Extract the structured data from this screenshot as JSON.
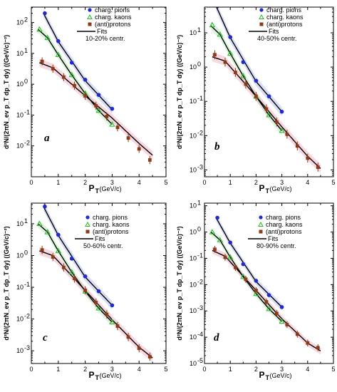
{
  "figure": {
    "colors": {
      "pions": "#1f2bcc",
      "pions_band": "#b9c2ee",
      "kaons": "#22bb22",
      "kaons_band": "#bde9bd",
      "protons": "#8b3a1a",
      "protons_band": "#f2b7c6",
      "fit": "#000000",
      "frame": "#000000"
    }
  },
  "chart_data": [
    {
      "type": "scatter",
      "panel": "a",
      "centrality": "10-20% centr.",
      "xlabel_main": "P",
      "xlabel_sub": "T",
      "xlabel_unit": " (GeV/c)",
      "ylabel": "d²N/(2πN_ev p_T dp_T dy) ((GeV/c)⁻²)",
      "xlim": [
        0,
        5
      ],
      "ylim_log10": [
        -3,
        2.5
      ],
      "yscale": "log",
      "xticks": [
        "0",
        "0.5",
        "1",
        "1.5",
        "2",
        "2.5",
        "3",
        "3.5",
        "4",
        "4.5",
        "5"
      ],
      "ytick_exponents": [
        -2,
        -1,
        0,
        1,
        2
      ],
      "legend": [
        "charg. pions",
        "charg. kaons",
        "(anti)protons",
        "Fits",
        "10-20% centr."
      ],
      "series": [
        {
          "name": "charg. pions",
          "marker": "circle",
          "x": [
            0.5,
            1.0,
            1.5,
            2.0,
            2.5,
            3.0
          ],
          "y": [
            200,
            25,
            5,
            1.4,
            0.45,
            0.16
          ]
        },
        {
          "name": "charg. kaons",
          "marker": "triangle",
          "x": [
            0.3,
            0.6,
            1.0,
            1.5,
            2.0,
            2.5,
            3.0
          ],
          "y": [
            60,
            32,
            9,
            2.0,
            0.5,
            0.14,
            0.05
          ]
        },
        {
          "name": "(anti)protons",
          "marker": "square",
          "x": [
            0.4,
            0.8,
            1.2,
            1.6,
            2.0,
            2.4,
            2.8,
            3.2,
            3.6,
            4.0,
            4.4
          ],
          "y": [
            5.5,
            3.2,
            1.7,
            0.9,
            0.42,
            0.2,
            0.09,
            0.04,
            0.018,
            0.008,
            0.0035
          ]
        }
      ],
      "fits": [
        {
          "x": [
            0.45,
            1.0,
            2.0,
            3.0
          ],
          "y": [
            200,
            24,
            1.3,
            0.15
          ]
        },
        {
          "x": [
            0.25,
            0.6,
            1.0,
            1.5,
            2.0,
            2.5,
            3.0
          ],
          "y": [
            60,
            32,
            9,
            2,
            0.5,
            0.14,
            0.05
          ]
        },
        {
          "x": [
            0.3,
            0.8,
            1.5,
            2.0,
            3.0,
            4.0,
            4.5
          ],
          "y": [
            5.0,
            3.4,
            1.0,
            0.42,
            0.08,
            0.012,
            0.005
          ]
        }
      ]
    },
    {
      "type": "scatter",
      "panel": "b",
      "centrality": "40-50% centr.",
      "xlabel_main": "P",
      "xlabel_sub": "T",
      "xlabel_unit": " (GeV/c)",
      "ylabel": "d²N/(2πN_ev p_T dp_T dy) ((GeV/c)⁻²)",
      "xlim": [
        0,
        5
      ],
      "ylim_log10": [
        -3.2,
        1.75
      ],
      "yscale": "log",
      "xticks": [
        "0",
        "0.5",
        "1",
        "1.5",
        "2",
        "2.5",
        "3",
        "3.5",
        "4",
        "4.5",
        "5"
      ],
      "ytick_exponents": [
        -3,
        -2,
        -1,
        0,
        1
      ],
      "legend": [
        "charg. pions",
        "charg. kaons",
        "(anti)protons",
        "Fits",
        "40-50% centr."
      ],
      "series": [
        {
          "name": "charg. pions",
          "marker": "circle",
          "x": [
            0.5,
            1.0,
            1.5,
            2.0,
            2.5,
            3.0
          ],
          "y": [
            60,
            7.5,
            1.4,
            0.4,
            0.14,
            0.05
          ]
        },
        {
          "name": "charg. kaons",
          "marker": "triangle",
          "x": [
            0.3,
            0.6,
            1.0,
            1.5,
            2.0,
            2.5,
            3.0
          ],
          "y": [
            17,
            9,
            2.5,
            0.55,
            0.14,
            0.04,
            0.014
          ]
        },
        {
          "name": "(anti)protons",
          "marker": "square",
          "x": [
            0.4,
            0.8,
            1.2,
            1.6,
            2.0,
            2.4,
            2.8,
            3.2,
            3.6,
            4.0,
            4.4
          ],
          "y": [
            2.3,
            1.4,
            0.7,
            0.32,
            0.14,
            0.06,
            0.025,
            0.011,
            0.005,
            0.0022,
            0.0012
          ]
        }
      ],
      "fits": [
        {
          "x": [
            0.45,
            1.0,
            2.0,
            3.0
          ],
          "y": [
            60,
            7.2,
            0.38,
            0.05
          ]
        },
        {
          "x": [
            0.25,
            0.6,
            1.0,
            1.5,
            2.0,
            2.5,
            3.0
          ],
          "y": [
            16,
            9,
            2.5,
            0.55,
            0.14,
            0.04,
            0.014
          ]
        },
        {
          "x": [
            0.3,
            0.8,
            1.5,
            2.0,
            3.0,
            4.0,
            4.5
          ],
          "y": [
            2.0,
            1.5,
            0.38,
            0.14,
            0.018,
            0.0025,
            0.0011
          ]
        }
      ]
    },
    {
      "type": "scatter",
      "panel": "c",
      "centrality": "50-60% centr.",
      "xlabel_main": "P",
      "xlabel_sub": "T",
      "xlabel_unit": " (GeV/c)",
      "ylabel": "d²N/(2πN_ev p_T dp_T dy) ((GeV/c)⁻²)",
      "xlim": [
        0,
        5
      ],
      "ylim_log10": [
        -3.4,
        1.65
      ],
      "yscale": "log",
      "xticks": [
        "0",
        "0.5",
        "1",
        "1.5",
        "2",
        "2.5",
        "3",
        "3.5",
        "4",
        "4.5",
        "5"
      ],
      "ytick_exponents": [
        -3,
        -2,
        -1,
        0,
        1
      ],
      "legend": [
        "charg. pions",
        "charg. kaons",
        "(anti)protons",
        "Fits",
        "50-60% centr."
      ],
      "series": [
        {
          "name": "charg. pions",
          "marker": "circle",
          "x": [
            0.5,
            1.0,
            1.5,
            2.0,
            2.5,
            3.0
          ],
          "y": [
            35,
            4.5,
            0.8,
            0.22,
            0.075,
            0.027
          ]
        },
        {
          "name": "charg. kaons",
          "marker": "triangle",
          "x": [
            0.3,
            0.6,
            1.0,
            1.5,
            2.0,
            2.5,
            3.0
          ],
          "y": [
            10,
            5.5,
            1.4,
            0.3,
            0.075,
            0.022,
            0.008
          ]
        },
        {
          "name": "(anti)protons",
          "marker": "square",
          "x": [
            0.4,
            0.8,
            1.2,
            1.6,
            2.0,
            2.4,
            2.8,
            3.2,
            3.6,
            4.0,
            4.4
          ],
          "y": [
            1.5,
            0.9,
            0.42,
            0.19,
            0.08,
            0.033,
            0.014,
            0.006,
            0.0027,
            0.0012,
            0.00065
          ]
        }
      ],
      "fits": [
        {
          "x": [
            0.45,
            1.0,
            2.0,
            3.0
          ],
          "y": [
            35,
            4.3,
            0.21,
            0.027
          ]
        },
        {
          "x": [
            0.25,
            0.6,
            1.0,
            1.5,
            2.0,
            2.5,
            3.0
          ],
          "y": [
            10,
            5.5,
            1.4,
            0.3,
            0.075,
            0.022,
            0.008
          ]
        },
        {
          "x": [
            0.3,
            0.8,
            1.5,
            2.0,
            3.0,
            4.0,
            4.5
          ],
          "y": [
            1.4,
            1.0,
            0.23,
            0.08,
            0.0095,
            0.0013,
            0.0006
          ]
        }
      ]
    },
    {
      "type": "scatter",
      "panel": "d",
      "centrality": "80-90% centr.",
      "xlabel_main": "P",
      "xlabel_sub": "T",
      "xlabel_unit": " (GeV/c)",
      "ylabel": "d²N/(2πN_ev p_T dp_T dy) ((GeV/c)⁻²)",
      "xlim": [
        0,
        5
      ],
      "ylim_log10": [
        -5,
        1.1
      ],
      "yscale": "log",
      "xticks": [
        "0",
        "0.5",
        "1",
        "1.5",
        "2",
        "2.5",
        "3",
        "3.5",
        "4",
        "4.5",
        "5"
      ],
      "ytick_exponents": [
        -5,
        -4,
        -3,
        -2,
        -1,
        0,
        1
      ],
      "legend": [
        "charg. pions",
        "charg. kaons",
        "(anti)protons",
        "Fits",
        "80-90% centr."
      ],
      "series": [
        {
          "name": "charg. pions",
          "marker": "circle",
          "x": [
            0.5,
            1.0,
            1.5,
            2.0,
            2.5,
            3.0
          ],
          "y": [
            3.5,
            0.4,
            0.06,
            0.014,
            0.004,
            0.0014
          ]
        },
        {
          "name": "charg. kaons",
          "marker": "triangle",
          "x": [
            0.3,
            0.6,
            1.0,
            1.5,
            2.0,
            2.5,
            3.0
          ],
          "y": [
            1.0,
            0.5,
            0.11,
            0.02,
            0.0045,
            0.0012,
            0.0004
          ]
        },
        {
          "name": "(anti)protons",
          "marker": "square",
          "x": [
            0.4,
            0.8,
            1.2,
            1.6,
            2.0,
            2.4,
            2.8,
            3.2,
            3.6,
            4.0,
            4.4
          ],
          "y": [
            0.22,
            0.11,
            0.045,
            0.016,
            0.006,
            0.0022,
            0.0008,
            0.0003,
            0.00013,
            6e-05,
            4e-05
          ]
        }
      ],
      "fits": [
        {
          "x": [
            0.45,
            1.0,
            2.0,
            3.0
          ],
          "y": [
            3.5,
            0.38,
            0.013,
            0.0014
          ]
        },
        {
          "x": [
            0.25,
            0.6,
            1.0,
            1.5,
            2.0,
            2.5,
            3.0
          ],
          "y": [
            1.0,
            0.5,
            0.11,
            0.02,
            0.0045,
            0.0012,
            0.0004
          ]
        },
        {
          "x": [
            0.3,
            0.8,
            1.5,
            2.0,
            3.0,
            4.0,
            4.5
          ],
          "y": [
            0.2,
            0.12,
            0.021,
            0.006,
            0.0005,
            6e-05,
            3e-05
          ]
        }
      ]
    }
  ]
}
